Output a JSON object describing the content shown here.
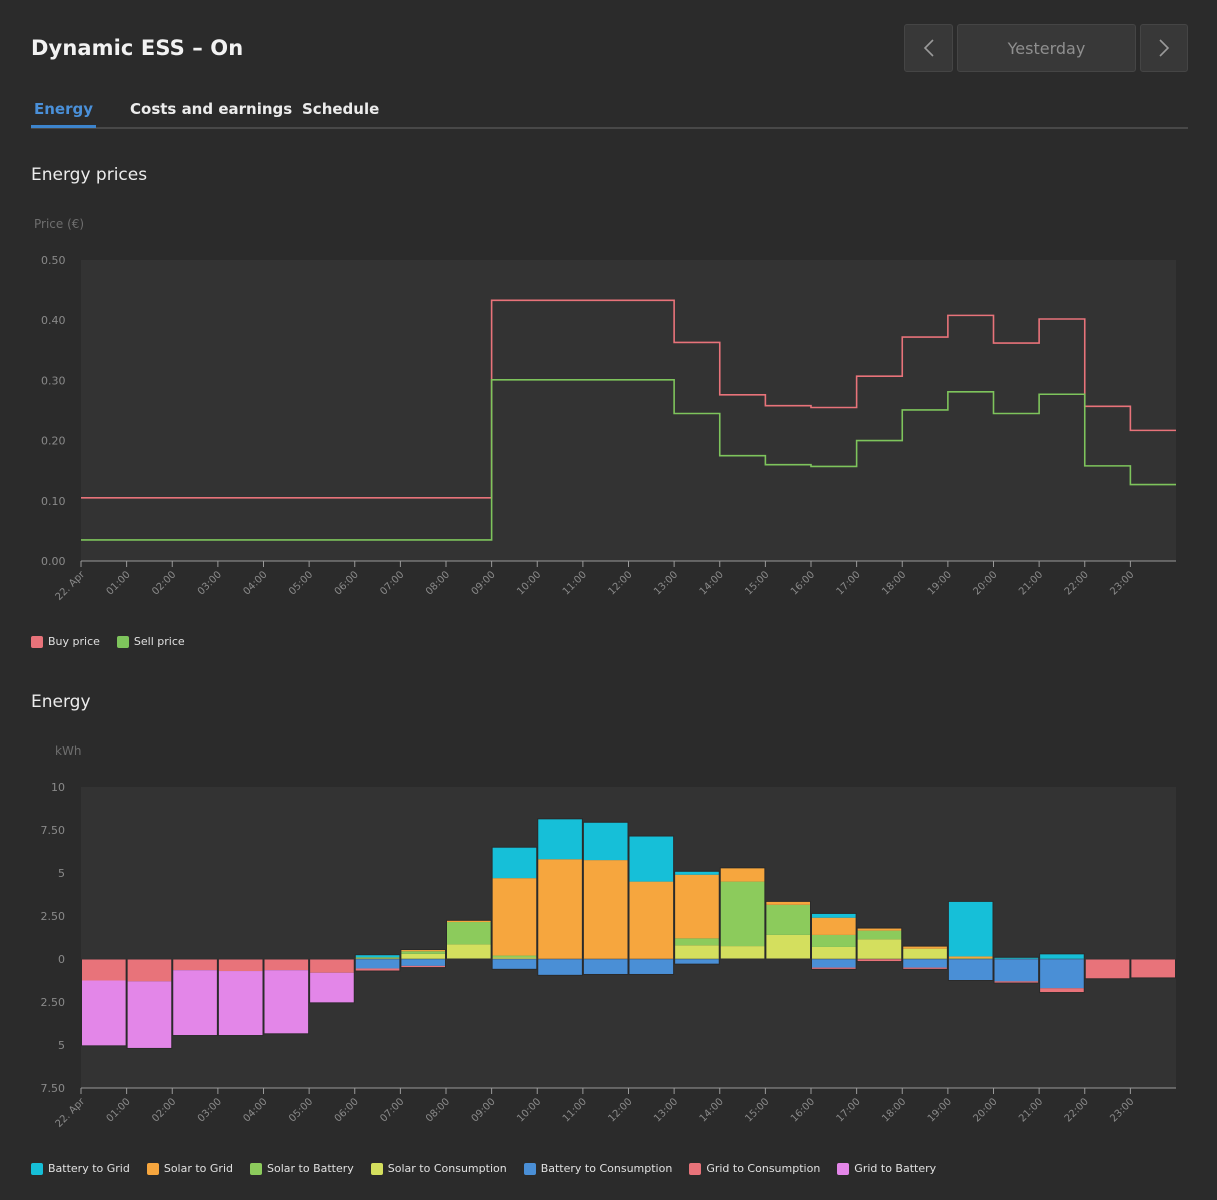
{
  "header": {
    "title": "Dynamic ESS – On",
    "period_label": "Yesterday",
    "prev_icon": "chevron-left-icon",
    "next_icon": "chevron-right-icon"
  },
  "tabs": [
    {
      "label": "Energy",
      "active": true
    },
    {
      "label": "Costs and earnings",
      "active": false
    },
    {
      "label": "Schedule",
      "active": false
    }
  ],
  "colors": {
    "buy_price": "#e8737a",
    "sell_price": "#7ec45c",
    "battery_to_grid": "#16bfd8",
    "solar_to_grid": "#f6a63e",
    "solar_to_battery": "#8ccb5c",
    "solar_to_consumption": "#d4df5e",
    "battery_to_consumption": "#4a8fd6",
    "grid_to_consumption": "#e8737a",
    "grid_to_battery": "#e386e8",
    "accent": "#3d84cc"
  },
  "prices_section": {
    "title": "Energy prices"
  },
  "energy_section": {
    "title": "Energy"
  },
  "chart_data": [
    {
      "type": "line",
      "step": true,
      "title": "Energy prices",
      "ylabel": "Price (€)",
      "ylim": [
        0,
        0.5
      ],
      "yticks": [
        "0.00",
        "0.10",
        "0.20",
        "0.30",
        "0.40",
        "0.50"
      ],
      "x": [
        "22. Apr",
        "01:00",
        "02:00",
        "03:00",
        "04:00",
        "05:00",
        "06:00",
        "07:00",
        "08:00",
        "09:00",
        "10:00",
        "11:00",
        "12:00",
        "13:00",
        "14:00",
        "15:00",
        "16:00",
        "17:00",
        "18:00",
        "19:00",
        "20:00",
        "21:00",
        "22:00",
        "23:00"
      ],
      "grid": false,
      "legend_position": "bottom-left",
      "series": [
        {
          "name": "Buy price",
          "values": [
            0.105,
            0.105,
            0.105,
            0.105,
            0.105,
            0.105,
            0.105,
            0.105,
            0.105,
            0.433,
            0.433,
            0.433,
            0.433,
            0.363,
            0.276,
            0.258,
            0.255,
            0.307,
            0.372,
            0.408,
            0.362,
            0.402,
            0.257,
            0.217
          ]
        },
        {
          "name": "Sell price",
          "values": [
            0.035,
            0.035,
            0.035,
            0.035,
            0.035,
            0.035,
            0.035,
            0.035,
            0.035,
            0.301,
            0.301,
            0.301,
            0.301,
            0.245,
            0.175,
            0.16,
            0.157,
            0.2,
            0.251,
            0.281,
            0.245,
            0.277,
            0.158,
            0.127
          ]
        }
      ]
    },
    {
      "type": "bar",
      "stacked": true,
      "title": "Energy",
      "ylabel": "kWh",
      "ylim": [
        -7.5,
        10
      ],
      "yticks": [
        {
          "value": 10,
          "label": "10"
        },
        {
          "value": 7.5,
          "label": "7.50"
        },
        {
          "value": 5,
          "label": "5"
        },
        {
          "value": 2.5,
          "label": "2.50"
        },
        {
          "value": 0,
          "label": "0"
        },
        {
          "value": -2.5,
          "label": "2.50"
        },
        {
          "value": -5,
          "label": "5"
        },
        {
          "value": -7.5,
          "label": "7.50"
        }
      ],
      "categories": [
        "22. Apr",
        "01:00",
        "02:00",
        "03:00",
        "04:00",
        "05:00",
        "06:00",
        "07:00",
        "08:00",
        "09:00",
        "10:00",
        "11:00",
        "12:00",
        "13:00",
        "14:00",
        "15:00",
        "16:00",
        "17:00",
        "18:00",
        "19:00",
        "20:00",
        "21:00",
        "22:00",
        "23:00"
      ],
      "legend_position": "bottom-left",
      "series": [
        {
          "name": "Solar to Consumption",
          "key": "solar_to_consumption",
          "direction": "up",
          "values": [
            0,
            0,
            0,
            0,
            0,
            0,
            0.05,
            0.3,
            0.85,
            0.1,
            0,
            0,
            0,
            0.8,
            0.75,
            1.4,
            0.7,
            1.15,
            0.6,
            0.05,
            0,
            0,
            0,
            0
          ]
        },
        {
          "name": "Solar to Battery",
          "key": "solar_to_battery",
          "direction": "up",
          "values": [
            0,
            0,
            0,
            0,
            0,
            0,
            0.05,
            0.15,
            1.3,
            0.1,
            0,
            0,
            0,
            0.4,
            3.75,
            1.75,
            0.7,
            0.5,
            0,
            0,
            0,
            0,
            0,
            0
          ]
        },
        {
          "name": "Solar to Grid",
          "key": "solar_to_grid",
          "direction": "up",
          "values": [
            0,
            0,
            0,
            0,
            0,
            0,
            0,
            0.1,
            0.1,
            4.5,
            5.8,
            5.75,
            4.5,
            3.7,
            0.8,
            0.2,
            1.0,
            0.15,
            0.15,
            0.1,
            0,
            0,
            0,
            0
          ]
        },
        {
          "name": "Battery to Grid",
          "key": "battery_to_grid",
          "direction": "up",
          "values": [
            0,
            0,
            0,
            0,
            0,
            0,
            0.15,
            0,
            0,
            1.8,
            2.35,
            2.2,
            2.65,
            0.2,
            0,
            0,
            0.25,
            0,
            0,
            3.2,
            0.1,
            0.3,
            0,
            0
          ]
        },
        {
          "name": "Battery to Consumption",
          "key": "battery_to_consumption",
          "direction": "down",
          "values": [
            0,
            0,
            0,
            0,
            0,
            0,
            0.55,
            0.4,
            0,
            0.6,
            0.95,
            0.9,
            0.9,
            0.3,
            0,
            0,
            0.5,
            0,
            0.5,
            1.25,
            1.3,
            1.7,
            0,
            0
          ]
        },
        {
          "name": "Grid to Consumption",
          "key": "grid_to_consumption",
          "direction": "down",
          "values": [
            1.25,
            1.3,
            0.65,
            0.7,
            0.65,
            0.8,
            0.15,
            0.1,
            0,
            0,
            0,
            0,
            0,
            0,
            0,
            0,
            0.1,
            0.15,
            0.1,
            0,
            0.1,
            0.25,
            1.15,
            1.1
          ]
        },
        {
          "name": "Grid to Battery",
          "key": "grid_to_battery",
          "direction": "down",
          "values": [
            3.8,
            3.9,
            3.8,
            3.75,
            3.7,
            1.75,
            0,
            0,
            0,
            0,
            0,
            0,
            0,
            0,
            0,
            0,
            0,
            0,
            0,
            0,
            0,
            0,
            0,
            0
          ]
        }
      ]
    }
  ]
}
